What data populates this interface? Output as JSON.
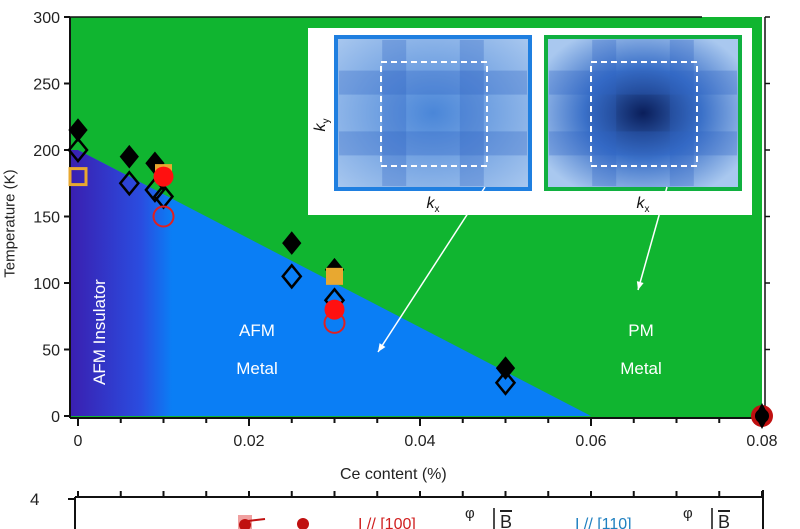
{
  "chart_data": {
    "type": "scatter",
    "xlabel": "Ce content (%)",
    "ylabel": "Temperature (K)",
    "xlim": [
      0,
      0.08
    ],
    "ylim": [
      0,
      300
    ],
    "xticks": [
      "0",
      "0.02",
      "0.04",
      "0.06",
      "0.08"
    ],
    "xtick_values": [
      0,
      0.02,
      0.04,
      0.06,
      0.08
    ],
    "yticks": [
      "0",
      "50",
      "100",
      "150",
      "200",
      "250",
      "300"
    ],
    "ytick_values": [
      0,
      50,
      100,
      150,
      200,
      250,
      300
    ],
    "grid": false,
    "phase_boundary": {
      "x": [
        0,
        0.06
      ],
      "y": [
        200,
        0
      ]
    },
    "regions": [
      {
        "label_lines": [
          "AFM Insulator"
        ],
        "color": "#3a1fb0"
      },
      {
        "label_lines": [
          "AFM",
          "Metal"
        ],
        "color": "#0a7ef5"
      },
      {
        "label_lines": [
          "PM",
          "Metal"
        ],
        "color": "#10b530"
      }
    ],
    "series": [
      {
        "marker": "diamond-filled",
        "color": "#000000",
        "x": [
          0,
          0.006,
          0.009,
          0.025,
          0.03,
          0.05
        ],
        "y": [
          215,
          195,
          190,
          130,
          110,
          36
        ]
      },
      {
        "marker": "diamond-open",
        "color": "#000000",
        "x": [
          0,
          0.006,
          0.009,
          0.01,
          0.025,
          0.03,
          0.05
        ],
        "y": [
          200,
          175,
          170,
          165,
          105,
          87,
          25
        ]
      },
      {
        "marker": "square-open",
        "color": "#e8a830",
        "x": [
          0
        ],
        "y": [
          180
        ]
      },
      {
        "marker": "square-filled",
        "color": "#e8a830",
        "x": [
          0.01,
          0.03
        ],
        "y": [
          183,
          105
        ]
      },
      {
        "marker": "circle-open",
        "color": "#e02020",
        "x": [
          0.01,
          0.03
        ],
        "y": [
          150,
          70
        ]
      },
      {
        "marker": "circle-filled",
        "color": "#ff1010",
        "x": [
          0.01,
          0.03
        ],
        "y": [
          180,
          80
        ]
      },
      {
        "marker": "circle-filled-dark",
        "color": "#c01010",
        "x": [
          0.08
        ],
        "y": [
          0
        ]
      }
    ],
    "insets": [
      {
        "border": "#1f7fe0",
        "xlabel": "k",
        "xsub": "x",
        "ylabel": "k",
        "ysub": "y"
      },
      {
        "border": "#10b040",
        "xlabel": "k",
        "xsub": "x"
      }
    ]
  },
  "lower_panel": {
    "ytick": "4",
    "label_100": "I // [100]",
    "label_110": "I // [110]",
    "phi": "φ",
    "field": "B",
    "color_100": "#d02020",
    "color_110": "#2080c0"
  }
}
